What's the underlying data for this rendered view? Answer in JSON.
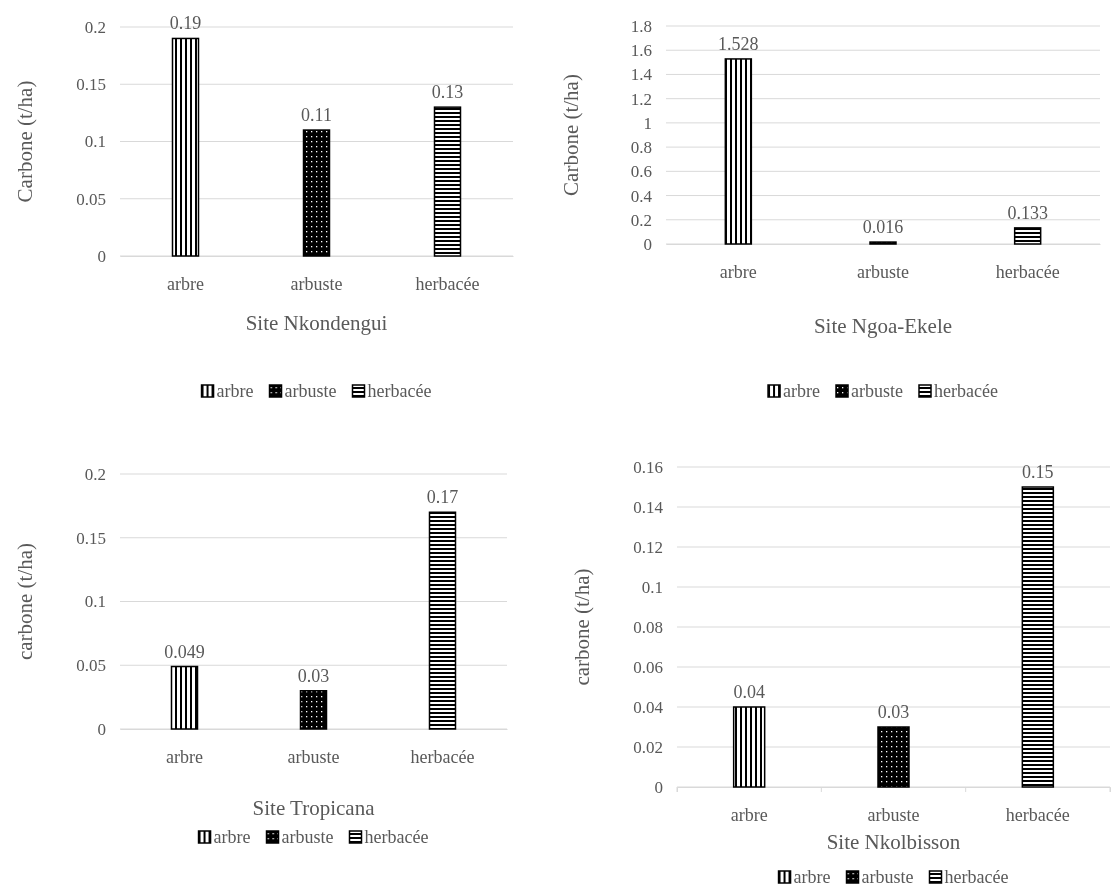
{
  "chart_data": [
    {
      "type": "bar",
      "xlabel": "Site Nkondengui",
      "ylabel": "Carbone (t/ha)",
      "categories": [
        "arbre",
        "arbuste",
        "herbacée"
      ],
      "ylim": [
        0,
        0.2
      ],
      "yticks": [
        0,
        0.05,
        0.1,
        0.15,
        0.2
      ],
      "grid": "y",
      "legend": "bottom",
      "data_labels": true,
      "series": [
        {
          "name": "arbre",
          "color": "#000000",
          "values": [
            0.19,
            null,
            null
          ]
        },
        {
          "name": "arbuste",
          "color": "#000000",
          "values": [
            null,
            0.11,
            null
          ]
        },
        {
          "name": "herbacée",
          "color": "#000000",
          "values": [
            null,
            null,
            0.13
          ]
        }
      ]
    },
    {
      "type": "bar",
      "xlabel": "Site Ngoa-Ekele",
      "ylabel": "Carbone (t/ha)",
      "categories": [
        "arbre",
        "arbuste",
        "herbacée"
      ],
      "ylim": [
        0,
        1.8
      ],
      "yticks": [
        0,
        0.2,
        0.4,
        0.6,
        0.8,
        1,
        1.2,
        1.4,
        1.6,
        1.8
      ],
      "grid": "y",
      "legend": "bottom",
      "data_labels": true,
      "series": [
        {
          "name": "arbre",
          "color": "#000000",
          "values": [
            1.528,
            null,
            null
          ]
        },
        {
          "name": "arbuste",
          "color": "#000000",
          "values": [
            null,
            0.016,
            null
          ]
        },
        {
          "name": "herbacée",
          "color": "#000000",
          "values": [
            null,
            null,
            0.133
          ]
        }
      ]
    },
    {
      "type": "bar",
      "xlabel": "Site Tropicana",
      "ylabel": "carbone (t/ha)",
      "categories": [
        "arbre",
        "arbuste",
        "herbacée"
      ],
      "ylim": [
        0,
        0.2
      ],
      "yticks": [
        0,
        0.05,
        0.1,
        0.15,
        0.2
      ],
      "grid": "y",
      "legend": "bottom",
      "data_labels": true,
      "series": [
        {
          "name": "arbre",
          "color": "#000000",
          "values": [
            0.049,
            null,
            null
          ]
        },
        {
          "name": "arbuste",
          "color": "#000000",
          "values": [
            null,
            0.03,
            null
          ]
        },
        {
          "name": "herbacée",
          "color": "#000000",
          "values": [
            null,
            null,
            0.17
          ]
        }
      ]
    },
    {
      "type": "bar",
      "xlabel": "Site Nkolbisson",
      "ylabel": "carbone (t/ha)",
      "categories": [
        "arbre",
        "arbuste",
        "herbacée"
      ],
      "ylim": [
        0,
        0.16
      ],
      "yticks": [
        0,
        0.02,
        0.04,
        0.06,
        0.08,
        0.1,
        0.12,
        0.14,
        0.16
      ],
      "grid": "y",
      "legend": "bottom",
      "data_labels": true,
      "series": [
        {
          "name": "arbre",
          "color": "#000000",
          "values": [
            0.04,
            null,
            null
          ]
        },
        {
          "name": "arbuste",
          "color": "#000000",
          "values": [
            null,
            0.03,
            null
          ]
        },
        {
          "name": "herbacée",
          "color": "#000000",
          "values": [
            null,
            null,
            0.15
          ]
        }
      ]
    }
  ]
}
